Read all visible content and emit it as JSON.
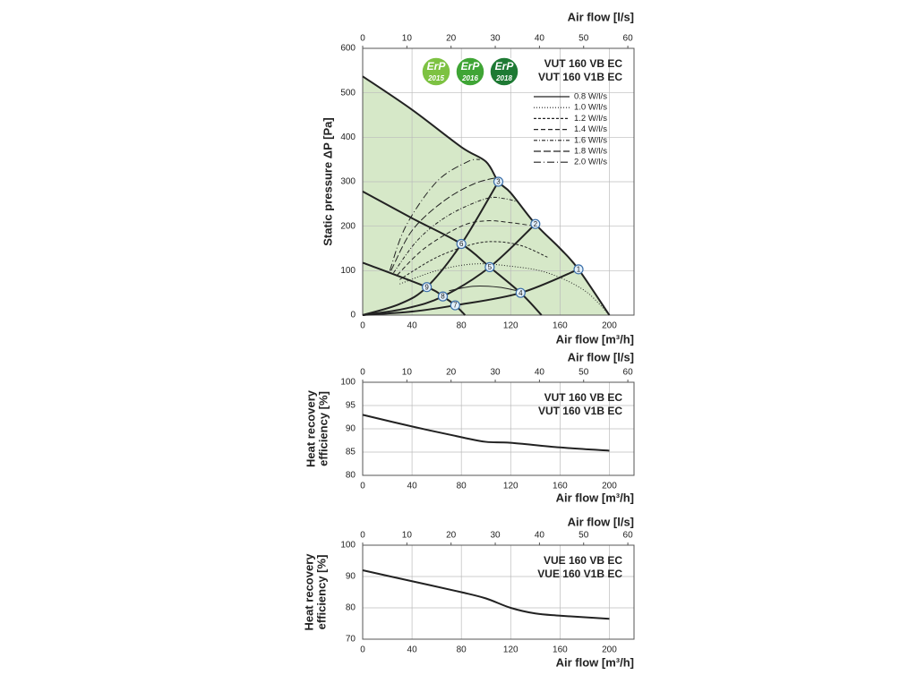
{
  "chart_data": [
    {
      "type": "line",
      "xlabel": "Air flow [m³/h]",
      "x2label": "Air flow [l/s]",
      "ylabel": [
        "Static pressure ΔP [Pa]"
      ],
      "xlim": [
        0,
        220
      ],
      "xticks": [
        0,
        40,
        80,
        120,
        160,
        200
      ],
      "x2lim": [
        0,
        61.4
      ],
      "x2ticks": [
        0,
        10,
        20,
        30,
        40,
        50,
        60
      ],
      "ylim": [
        0,
        600
      ],
      "yticks": [
        0,
        100,
        200,
        300,
        400,
        500,
        600
      ],
      "grid": true,
      "models": [
        "VUT 160 VB EC",
        "VUT 160 V1B EC"
      ],
      "badges": [
        {
          "title": "ErP",
          "year": "2015",
          "color": "#7dc242"
        },
        {
          "title": "ErP",
          "year": "2016",
          "color": "#3fa535"
        },
        {
          "title": "ErP",
          "year": "2018",
          "color": "#1e7a34"
        }
      ],
      "series": [
        {
          "x": [
            0,
            40,
            80,
            100,
            110,
            120,
            140,
            160,
            175,
            200
          ],
          "values": [
            537,
            462,
            378,
            345,
            300,
            275,
            205,
            150,
            103,
            0
          ],
          "color": "#222",
          "style": "solid",
          "width": 2,
          "fill": "#d6e8c8"
        },
        {
          "x": [
            0,
            40,
            80,
            103,
            128,
            145
          ],
          "values": [
            278,
            218,
            160,
            108,
            50,
            0
          ],
          "color": "#222",
          "style": "solid",
          "width": 2
        },
        {
          "x": [
            0,
            52,
            65,
            75,
            83
          ],
          "values": [
            118,
            63,
            42,
            22,
            0
          ],
          "color": "#222",
          "style": "solid",
          "width": 2
        },
        {
          "x": [
            0,
            40,
            75,
            128,
            175
          ],
          "values": [
            0,
            8,
            22,
            50,
            103
          ],
          "color": "#222",
          "style": "solid",
          "width": 2
        },
        {
          "x": [
            0,
            35,
            65,
            103,
            140
          ],
          "values": [
            0,
            15,
            42,
            108,
            205
          ],
          "color": "#222",
          "style": "solid",
          "width": 2
        },
        {
          "x": [
            0,
            30,
            52,
            80,
            110
          ],
          "values": [
            0,
            25,
            63,
            160,
            300
          ],
          "color": "#222",
          "style": "solid",
          "width": 2
        },
        {
          "name": "0.8 W/l/s",
          "x": [
            70,
            90,
            110,
            125
          ],
          "values": [
            55,
            65,
            63,
            55
          ],
          "color": "#222",
          "style": "solid",
          "width": 1
        },
        {
          "name": "1.0 W/l/s",
          "x": [
            30,
            60,
            90,
            120,
            150,
            180,
            200
          ],
          "values": [
            70,
            100,
            115,
            110,
            95,
            55,
            0
          ],
          "color": "#222",
          "style": "dotted",
          "width": 1
        },
        {
          "name": "1.2 W/l/s",
          "x": [
            30,
            60,
            90,
            110,
            130,
            150
          ],
          "values": [
            80,
            130,
            160,
            165,
            155,
            130
          ],
          "color": "#222",
          "style": "dash1",
          "width": 1
        },
        {
          "name": "1.4 W/l/s",
          "x": [
            28,
            50,
            80,
            100,
            120,
            140
          ],
          "values": [
            90,
            150,
            200,
            212,
            208,
            200
          ],
          "color": "#222",
          "style": "dash2",
          "width": 1
        },
        {
          "name": "1.6 W/l/s",
          "x": [
            25,
            45,
            70,
            100,
            115,
            125
          ],
          "values": [
            95,
            170,
            225,
            262,
            262,
            255
          ],
          "color": "#222",
          "style": "dashdot",
          "width": 1
        },
        {
          "name": "1.8 W/l/s",
          "x": [
            23,
            40,
            65,
            90,
            110
          ],
          "values": [
            100,
            190,
            255,
            295,
            310
          ],
          "color": "#222",
          "style": "longdash",
          "width": 1
        },
        {
          "name": "2.0 W/l/s",
          "x": [
            22,
            35,
            60,
            85,
            95
          ],
          "values": [
            100,
            200,
            300,
            345,
            350
          ],
          "color": "#222",
          "style": "longdashdot",
          "width": 1
        }
      ],
      "points": [
        {
          "label": "1",
          "x": 175,
          "y": 103
        },
        {
          "label": "2",
          "x": 140,
          "y": 205
        },
        {
          "label": "3",
          "x": 110,
          "y": 300
        },
        {
          "label": "4",
          "x": 128,
          "y": 50
        },
        {
          "label": "5",
          "x": 103,
          "y": 108
        },
        {
          "label": "6",
          "x": 80,
          "y": 160
        },
        {
          "label": "7",
          "x": 75,
          "y": 22
        },
        {
          "label": "8",
          "x": 65,
          "y": 42
        },
        {
          "label": "9",
          "x": 52,
          "y": 63
        }
      ]
    },
    {
      "type": "line",
      "xlabel": "Air flow [m³/h]",
      "x2label": "Air flow [l/s]",
      "ylabel": [
        "Heat recovery",
        "efficiency [%]"
      ],
      "xlim": [
        0,
        220
      ],
      "xticks": [
        0,
        40,
        80,
        120,
        160,
        200
      ],
      "x2lim": [
        0,
        61.4
      ],
      "x2ticks": [
        0,
        10,
        20,
        30,
        40,
        50,
        60
      ],
      "ylim": [
        80,
        100
      ],
      "yticks": [
        80,
        85,
        90,
        95,
        100
      ],
      "grid": true,
      "models": [
        "VUT 160 VB EC",
        "VUT 160 V1B EC"
      ],
      "x": [
        0,
        40,
        80,
        100,
        120,
        160,
        200
      ],
      "series": [
        {
          "values": [
            93,
            90.5,
            88.2,
            87.2,
            87,
            86,
            85.3
          ],
          "color": "#222",
          "style": "solid",
          "width": 2
        }
      ]
    },
    {
      "type": "line",
      "xlabel": "Air flow [m³/h]",
      "x2label": "Air flow [l/s]",
      "ylabel": [
        "Heat recovery",
        "efficiency [%]"
      ],
      "xlim": [
        0,
        220
      ],
      "xticks": [
        0,
        40,
        80,
        120,
        160,
        200
      ],
      "x2lim": [
        0,
        61.4
      ],
      "x2ticks": [
        0,
        10,
        20,
        30,
        40,
        50,
        60
      ],
      "ylim": [
        70,
        100
      ],
      "yticks": [
        70,
        80,
        90,
        100
      ],
      "grid": true,
      "models": [
        "VUE 160 VB EC",
        "VUE 160 V1B EC"
      ],
      "x": [
        0,
        40,
        80,
        100,
        120,
        140,
        160,
        200
      ],
      "series": [
        {
          "values": [
            92,
            88.5,
            85,
            83,
            80,
            78.2,
            77.5,
            76.5
          ],
          "color": "#222",
          "style": "solid",
          "width": 2
        }
      ]
    }
  ]
}
